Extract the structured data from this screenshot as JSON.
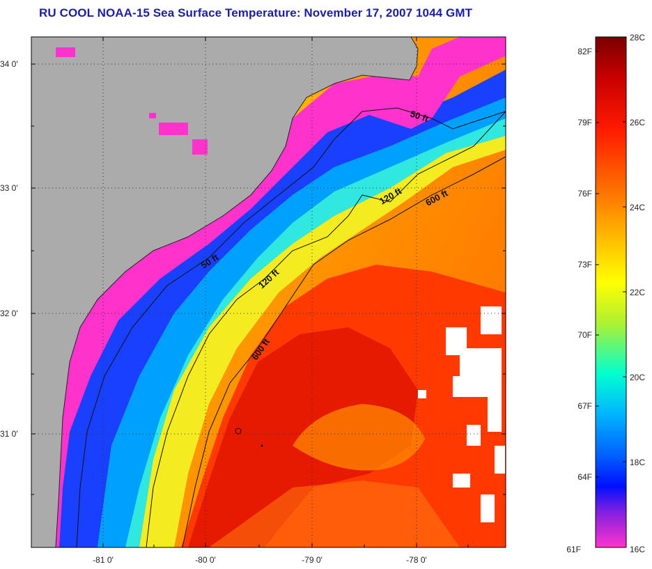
{
  "title": "RU COOL  NOAA-15  Sea Surface Temperature:  November 17, 2007 1044 GMT",
  "map": {
    "latitude_labels": [
      "34 0'",
      "33 0'",
      "32 0'",
      "31 0'"
    ],
    "longitude_labels": [
      "-81 0'",
      "-80 0'",
      "-79 0'",
      "-78 0'"
    ],
    "isobath_labels": [
      {
        "text": "50 ft",
        "id": "50ft-north"
      },
      {
        "text": "50 ft",
        "id": "50ft-south"
      },
      {
        "text": "120 ft",
        "id": "120ft-north"
      },
      {
        "text": "120 ft",
        "id": "120ft-south"
      },
      {
        "text": "600 ft",
        "id": "600ft-north"
      },
      {
        "text": "600 ft",
        "id": "600ft-south"
      }
    ],
    "colors": {
      "land": "#ababab",
      "cloud": "#ffffff",
      "cold_coastal": "#ff33cc",
      "shelf": "#00c8ff",
      "gulf_stream": "#ee1a00"
    }
  },
  "colorbar": {
    "fahrenheit_labels": [
      "82F",
      "79F",
      "76F",
      "73F",
      "70F",
      "67F",
      "64F",
      "61F"
    ],
    "celsius_labels": [
      "28C",
      "26C",
      "24C",
      "22C",
      "20C",
      "18C",
      "16C"
    ],
    "min_celsius": 16,
    "max_celsius": 28,
    "min_fahrenheit": 61,
    "max_fahrenheit": 82
  }
}
